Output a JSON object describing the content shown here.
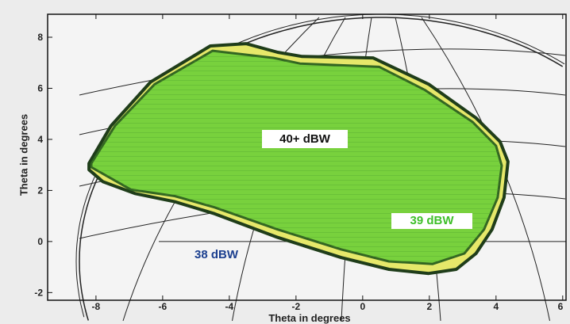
{
  "chart_data": {
    "type": "contour-map",
    "xlabel": "Theta in degrees",
    "ylabel": "Theta in degrees",
    "xlim": [
      -9.45,
      6.1
    ],
    "ylim": [
      -2.3,
      8.9
    ],
    "xticks": [
      -8,
      -6,
      -4,
      -2,
      0,
      2,
      4,
      6
    ],
    "yticks": [
      -2,
      0,
      2,
      4,
      6,
      8
    ],
    "contours": [
      {
        "label": "39 dBW",
        "fill": "#e6e86a",
        "stroke": "#1f3d1a",
        "points": [
          [
            -8.21,
            3.06
          ],
          [
            -7.55,
            4.53
          ],
          [
            -6.36,
            6.25
          ],
          [
            -4.57,
            7.66
          ],
          [
            -3.5,
            7.75
          ],
          [
            -2.55,
            7.41
          ],
          [
            -1.83,
            7.25
          ],
          [
            0.31,
            7.19
          ],
          [
            1.98,
            6.16
          ],
          [
            3.4,
            4.84
          ],
          [
            4.12,
            3.91
          ],
          [
            4.36,
            3.13
          ],
          [
            4.24,
            1.72
          ],
          [
            3.88,
            0.47
          ],
          [
            3.4,
            -0.47
          ],
          [
            2.81,
            -1.09
          ],
          [
            1.98,
            -1.25
          ],
          [
            0.79,
            -1.09
          ],
          [
            -0.64,
            -0.63
          ],
          [
            -2.55,
            0.16
          ],
          [
            -4.45,
            1.09
          ],
          [
            -5.64,
            1.56
          ],
          [
            -6.83,
            1.88
          ],
          [
            -7.79,
            2.34
          ],
          [
            -8.21,
            2.81
          ]
        ]
      },
      {
        "label": "40+ dBW",
        "fill": "#6fd03a",
        "stroke": "#245c1c",
        "points": [
          [
            -8.14,
            3.06
          ],
          [
            -7.43,
            4.53
          ],
          [
            -6.24,
            6.16
          ],
          [
            -4.5,
            7.47
          ],
          [
            -2.67,
            7.19
          ],
          [
            -1.88,
            6.97
          ],
          [
            0.5,
            6.84
          ],
          [
            1.86,
            5.94
          ],
          [
            3.29,
            4.69
          ],
          [
            4.0,
            3.75
          ],
          [
            4.17,
            2.97
          ],
          [
            4.05,
            1.72
          ],
          [
            3.64,
            0.47
          ],
          [
            3.05,
            -0.47
          ],
          [
            2.1,
            -0.88
          ],
          [
            0.79,
            -0.78
          ],
          [
            -0.64,
            -0.31
          ],
          [
            -2.55,
            0.47
          ],
          [
            -4.45,
            1.34
          ],
          [
            -5.64,
            1.78
          ],
          [
            -6.95,
            2.03
          ],
          [
            -8.14,
            2.91
          ]
        ]
      }
    ],
    "annotations": [
      "40+ dBW",
      "39 dBW",
      "38 dBW"
    ]
  }
}
